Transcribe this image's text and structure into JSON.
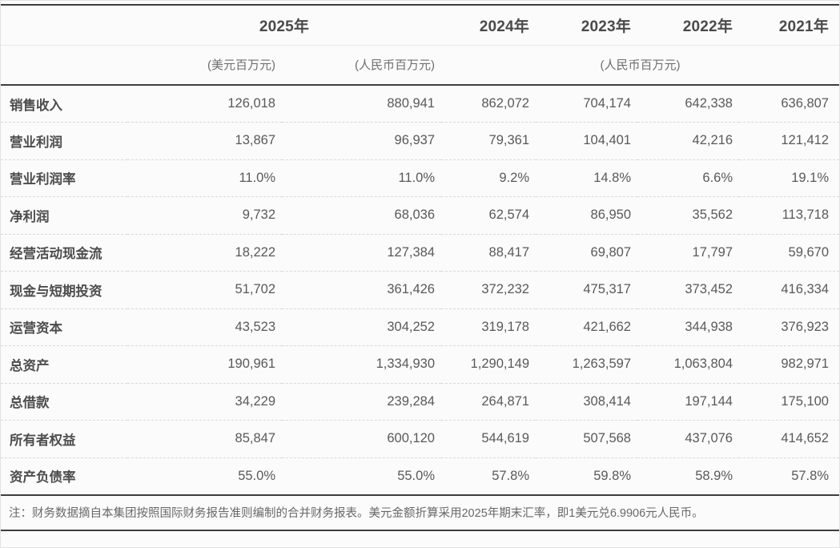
{
  "table": {
    "years": [
      "2025年",
      "2024年",
      "2023年",
      "2022年",
      "2021年"
    ],
    "units": {
      "usd": "(美元百万元)",
      "rmb": "(人民币百万元)",
      "rmb_group": "(人民币百万元)"
    },
    "rows": [
      {
        "label": "销售收入",
        "values": [
          "126,018",
          "880,941",
          "862,072",
          "704,174",
          "642,338",
          "636,807"
        ]
      },
      {
        "label": "营业利润",
        "values": [
          "13,867",
          "96,937",
          "79,361",
          "104,401",
          "42,216",
          "121,412"
        ]
      },
      {
        "label": "营业利润率",
        "values": [
          "11.0%",
          "11.0%",
          "9.2%",
          "14.8%",
          "6.6%",
          "19.1%"
        ]
      },
      {
        "label": "净利润",
        "values": [
          "9,732",
          "68,036",
          "62,574",
          "86,950",
          "35,562",
          "113,718"
        ]
      },
      {
        "label": "经营活动现金流",
        "values": [
          "18,222",
          "127,384",
          "88,417",
          "69,807",
          "17,797",
          "59,670"
        ]
      },
      {
        "label": "现金与短期投资",
        "values": [
          "51,702",
          "361,426",
          "372,232",
          "475,317",
          "373,452",
          "416,334"
        ]
      },
      {
        "label": "运营资本",
        "values": [
          "43,523",
          "304,252",
          "319,178",
          "421,662",
          "344,938",
          "376,923"
        ]
      },
      {
        "label": "总资产",
        "values": [
          "190,961",
          "1,334,930",
          "1,290,149",
          "1,263,597",
          "1,063,804",
          "982,971"
        ]
      },
      {
        "label": "总借款",
        "values": [
          "34,229",
          "239,284",
          "264,871",
          "308,414",
          "197,144",
          "175,100"
        ]
      },
      {
        "label": "所有者权益",
        "values": [
          "85,847",
          "600,120",
          "544,619",
          "507,568",
          "437,076",
          "414,652"
        ]
      },
      {
        "label": "资产负债率",
        "values": [
          "55.0%",
          "55.0%",
          "57.8%",
          "59.8%",
          "58.9%",
          "57.8%"
        ]
      }
    ],
    "note": "注：财务数据摘自本集团按照国际财务报告准则编制的合并财务报表。美元金额折算采用2025年期末汇率，即1美元兑6.9906元人民币。"
  },
  "colors": {
    "border_dark": "#3e3e3e",
    "border_light": "#e7e7e7",
    "row_divider_dashed": "#d9d9d9",
    "outer_border": "#e2e2e2",
    "background": "#fbfbfb",
    "text_label": "#4d4d4d",
    "text_value": "#595959",
    "text_unit": "#6e6e6e"
  }
}
